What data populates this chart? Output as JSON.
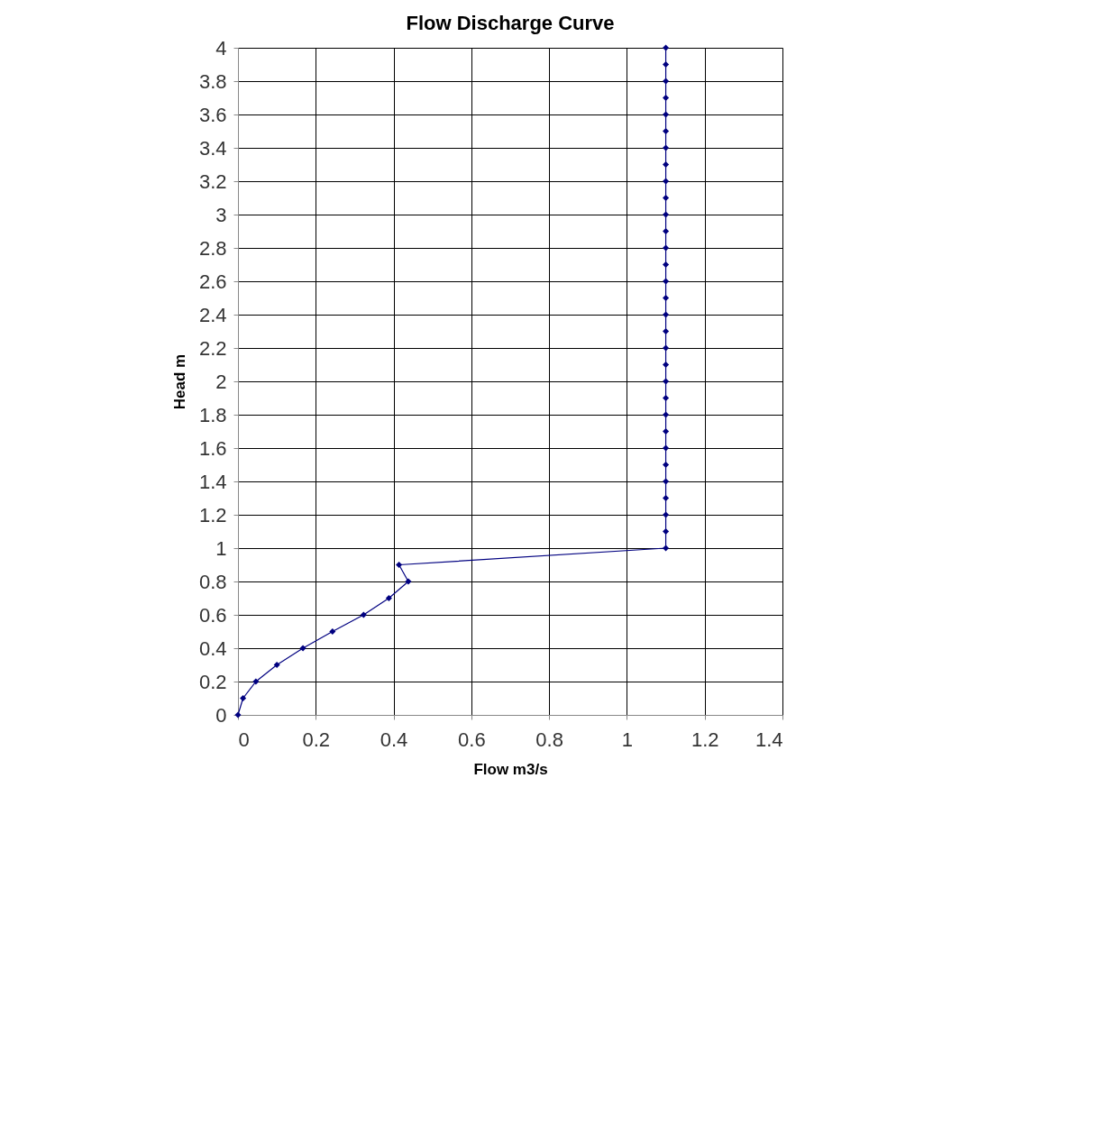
{
  "chart_data": {
    "type": "line",
    "title": "Flow Discharge Curve",
    "xlabel": "Flow m3/s",
    "ylabel": "Head m",
    "series": [
      {
        "color": "#000080",
        "x": [
          0,
          0.013,
          0.046,
          0.1,
          0.167,
          0.243,
          0.323,
          0.388,
          0.438,
          0.414,
          1.1,
          1.1,
          1.1,
          1.1,
          1.1,
          1.1,
          1.1,
          1.1,
          1.1,
          1.1,
          1.1,
          1.1,
          1.1,
          1.1,
          1.1,
          1.1,
          1.1,
          1.1,
          1.1,
          1.1,
          1.1,
          1.1,
          1.1,
          1.1,
          1.1,
          1.1,
          1.1,
          1.1,
          1.1,
          1.1,
          1.1
        ],
        "values": [
          0,
          0.1,
          0.2,
          0.3,
          0.4,
          0.5,
          0.6,
          0.7,
          0.8,
          0.9,
          1.0,
          1.1,
          1.2,
          1.3,
          1.4,
          1.5,
          1.6,
          1.7,
          1.8,
          1.9,
          2.0,
          2.1,
          2.2,
          2.3,
          2.4,
          2.5,
          2.6,
          2.7,
          2.8,
          2.9,
          3.0,
          3.1,
          3.2,
          3.3,
          3.4,
          3.5,
          3.6,
          3.7,
          3.8,
          3.9,
          4.0
        ]
      }
    ],
    "xlim": [
      0,
      1.4
    ],
    "xticks": [
      0,
      0.2,
      0.4,
      0.6,
      0.8,
      1,
      1.2,
      1.4
    ],
    "ylim": [
      0,
      4
    ],
    "yticks": [
      0,
      0.2,
      0.4,
      0.6,
      0.8,
      1,
      1.2,
      1.4,
      1.6,
      1.8,
      2,
      2.2,
      2.4,
      2.6,
      2.8,
      3,
      3.2,
      3.4,
      3.6,
      3.8,
      4
    ],
    "grid": true,
    "marker": "diamond",
    "line_style": "solid"
  }
}
